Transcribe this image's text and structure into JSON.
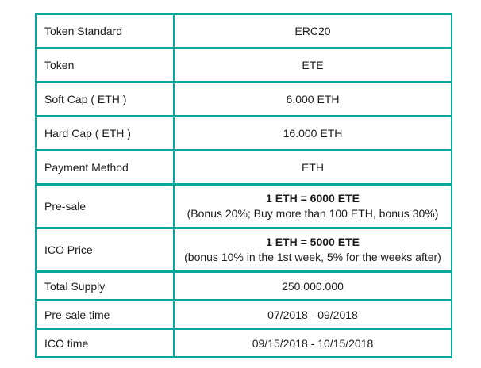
{
  "theme": {
    "border_color": "#0aa79c",
    "text_color": "#1c1c1e",
    "background_color": "#ffffff"
  },
  "table": {
    "rows": [
      {
        "label": "Token Standard",
        "value": "ERC20"
      },
      {
        "label": "Token",
        "value": "ETE"
      },
      {
        "label": "Soft Cap ( ETH )",
        "value": "6.000 ETH"
      },
      {
        "label": "Hard Cap ( ETH )",
        "value": "16.000 ETH"
      },
      {
        "label": "Payment Method",
        "value": "ETH"
      },
      {
        "label": "Pre-sale",
        "value": "1 ETH = 6000 ETE",
        "subvalue": "(Bonus 20%; Buy more than 100 ETH, bonus 30%)"
      },
      {
        "label": "ICO Price",
        "value": "1 ETH = 5000 ETE",
        "subvalue": "(bonus 10% in the 1st week, 5% for the weeks after)"
      },
      {
        "label": "Total Supply",
        "value": "250.000.000"
      },
      {
        "label": "Pre-sale time",
        "value": "07/2018 - 09/2018"
      },
      {
        "label": "ICO time",
        "value": "09/15/2018 - 10/15/2018"
      }
    ]
  }
}
